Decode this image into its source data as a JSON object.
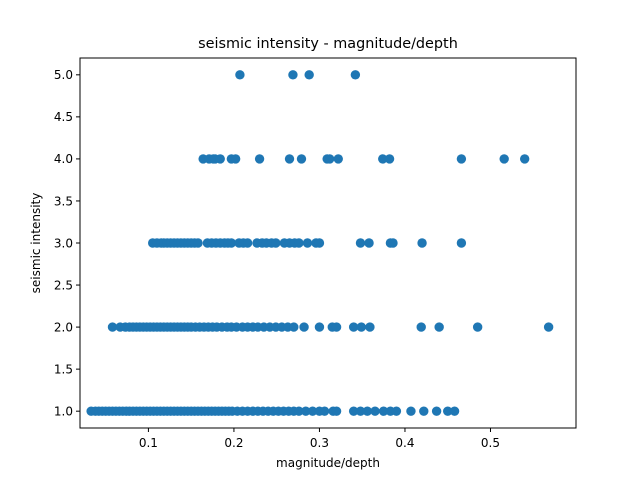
{
  "chart_data": {
    "type": "scatter",
    "title": "seismic intensity - magnitude/depth",
    "xlabel": "magnitude/depth",
    "ylabel": "seismic intensity",
    "xlim": [
      0.02,
      0.6
    ],
    "ylim": [
      0.8,
      5.2
    ],
    "x_ticks": [
      0.1,
      0.2,
      0.3,
      0.4,
      0.5
    ],
    "x_tick_labels": [
      "0.1",
      "0.2",
      "0.3",
      "0.4",
      "0.5"
    ],
    "y_ticks": [
      1.0,
      1.5,
      2.0,
      2.5,
      3.0,
      3.5,
      4.0,
      4.5,
      5.0
    ],
    "y_tick_labels": [
      "1.0",
      "1.5",
      "2.0",
      "2.5",
      "3.0",
      "3.5",
      "4.0",
      "4.5",
      "5.0"
    ],
    "grid": false,
    "marker_color": "#1f77b4",
    "series": [
      {
        "points": [
          [
            0.207,
            5.0
          ],
          [
            0.269,
            5.0
          ],
          [
            0.288,
            5.0
          ],
          [
            0.342,
            5.0
          ],
          [
            0.164,
            4.0
          ],
          [
            0.171,
            4.0
          ],
          [
            0.176,
            4.0
          ],
          [
            0.178,
            4.0
          ],
          [
            0.184,
            4.0
          ],
          [
            0.197,
            4.0
          ],
          [
            0.202,
            4.0
          ],
          [
            0.23,
            4.0
          ],
          [
            0.265,
            4.0
          ],
          [
            0.279,
            4.0
          ],
          [
            0.309,
            4.0
          ],
          [
            0.312,
            4.0
          ],
          [
            0.322,
            4.0
          ],
          [
            0.374,
            4.0
          ],
          [
            0.382,
            4.0
          ],
          [
            0.466,
            4.0
          ],
          [
            0.516,
            4.0
          ],
          [
            0.54,
            4.0
          ],
          [
            0.105,
            3.0
          ],
          [
            0.11,
            3.0
          ],
          [
            0.115,
            3.0
          ],
          [
            0.118,
            3.0
          ],
          [
            0.122,
            3.0
          ],
          [
            0.126,
            3.0
          ],
          [
            0.13,
            3.0
          ],
          [
            0.134,
            3.0
          ],
          [
            0.138,
            3.0
          ],
          [
            0.142,
            3.0
          ],
          [
            0.146,
            3.0
          ],
          [
            0.15,
            3.0
          ],
          [
            0.154,
            3.0
          ],
          [
            0.158,
            3.0
          ],
          [
            0.169,
            3.0
          ],
          [
            0.174,
            3.0
          ],
          [
            0.179,
            3.0
          ],
          [
            0.184,
            3.0
          ],
          [
            0.189,
            3.0
          ],
          [
            0.193,
            3.0
          ],
          [
            0.197,
            3.0
          ],
          [
            0.206,
            3.0
          ],
          [
            0.211,
            3.0
          ],
          [
            0.216,
            3.0
          ],
          [
            0.227,
            3.0
          ],
          [
            0.233,
            3.0
          ],
          [
            0.238,
            3.0
          ],
          [
            0.244,
            3.0
          ],
          [
            0.249,
            3.0
          ],
          [
            0.259,
            3.0
          ],
          [
            0.265,
            3.0
          ],
          [
            0.271,
            3.0
          ],
          [
            0.276,
            3.0
          ],
          [
            0.286,
            3.0
          ],
          [
            0.296,
            3.0
          ],
          [
            0.3,
            3.0
          ],
          [
            0.348,
            3.0
          ],
          [
            0.358,
            3.0
          ],
          [
            0.383,
            3.0
          ],
          [
            0.386,
            3.0
          ],
          [
            0.42,
            3.0
          ],
          [
            0.466,
            3.0
          ],
          [
            0.058,
            2.0
          ],
          [
            0.067,
            2.0
          ],
          [
            0.073,
            2.0
          ],
          [
            0.078,
            2.0
          ],
          [
            0.082,
            2.0
          ],
          [
            0.086,
            2.0
          ],
          [
            0.09,
            2.0
          ],
          [
            0.094,
            2.0
          ],
          [
            0.098,
            2.0
          ],
          [
            0.102,
            2.0
          ],
          [
            0.106,
            2.0
          ],
          [
            0.11,
            2.0
          ],
          [
            0.114,
            2.0
          ],
          [
            0.118,
            2.0
          ],
          [
            0.122,
            2.0
          ],
          [
            0.126,
            2.0
          ],
          [
            0.13,
            2.0
          ],
          [
            0.134,
            2.0
          ],
          [
            0.138,
            2.0
          ],
          [
            0.142,
            2.0
          ],
          [
            0.146,
            2.0
          ],
          [
            0.15,
            2.0
          ],
          [
            0.155,
            2.0
          ],
          [
            0.16,
            2.0
          ],
          [
            0.165,
            2.0
          ],
          [
            0.17,
            2.0
          ],
          [
            0.175,
            2.0
          ],
          [
            0.18,
            2.0
          ],
          [
            0.186,
            2.0
          ],
          [
            0.192,
            2.0
          ],
          [
            0.197,
            2.0
          ],
          [
            0.203,
            2.0
          ],
          [
            0.21,
            2.0
          ],
          [
            0.216,
            2.0
          ],
          [
            0.222,
            2.0
          ],
          [
            0.228,
            2.0
          ],
          [
            0.235,
            2.0
          ],
          [
            0.242,
            2.0
          ],
          [
            0.249,
            2.0
          ],
          [
            0.256,
            2.0
          ],
          [
            0.263,
            2.0
          ],
          [
            0.27,
            2.0
          ],
          [
            0.282,
            2.0
          ],
          [
            0.3,
            2.0
          ],
          [
            0.315,
            2.0
          ],
          [
            0.32,
            2.0
          ],
          [
            0.34,
            2.0
          ],
          [
            0.349,
            2.0
          ],
          [
            0.359,
            2.0
          ],
          [
            0.419,
            2.0
          ],
          [
            0.44,
            2.0
          ],
          [
            0.485,
            2.0
          ],
          [
            0.568,
            2.0
          ],
          [
            0.033,
            1.0
          ],
          [
            0.038,
            1.0
          ],
          [
            0.042,
            1.0
          ],
          [
            0.046,
            1.0
          ],
          [
            0.05,
            1.0
          ],
          [
            0.054,
            1.0
          ],
          [
            0.058,
            1.0
          ],
          [
            0.062,
            1.0
          ],
          [
            0.066,
            1.0
          ],
          [
            0.07,
            1.0
          ],
          [
            0.074,
            1.0
          ],
          [
            0.078,
            1.0
          ],
          [
            0.082,
            1.0
          ],
          [
            0.086,
            1.0
          ],
          [
            0.09,
            1.0
          ],
          [
            0.094,
            1.0
          ],
          [
            0.098,
            1.0
          ],
          [
            0.102,
            1.0
          ],
          [
            0.106,
            1.0
          ],
          [
            0.11,
            1.0
          ],
          [
            0.114,
            1.0
          ],
          [
            0.118,
            1.0
          ],
          [
            0.122,
            1.0
          ],
          [
            0.126,
            1.0
          ],
          [
            0.13,
            1.0
          ],
          [
            0.134,
            1.0
          ],
          [
            0.138,
            1.0
          ],
          [
            0.142,
            1.0
          ],
          [
            0.146,
            1.0
          ],
          [
            0.15,
            1.0
          ],
          [
            0.154,
            1.0
          ],
          [
            0.158,
            1.0
          ],
          [
            0.162,
            1.0
          ],
          [
            0.166,
            1.0
          ],
          [
            0.17,
            1.0
          ],
          [
            0.174,
            1.0
          ],
          [
            0.178,
            1.0
          ],
          [
            0.182,
            1.0
          ],
          [
            0.186,
            1.0
          ],
          [
            0.19,
            1.0
          ],
          [
            0.194,
            1.0
          ],
          [
            0.198,
            1.0
          ],
          [
            0.204,
            1.0
          ],
          [
            0.21,
            1.0
          ],
          [
            0.216,
            1.0
          ],
          [
            0.222,
            1.0
          ],
          [
            0.228,
            1.0
          ],
          [
            0.234,
            1.0
          ],
          [
            0.24,
            1.0
          ],
          [
            0.246,
            1.0
          ],
          [
            0.252,
            1.0
          ],
          [
            0.258,
            1.0
          ],
          [
            0.264,
            1.0
          ],
          [
            0.27,
            1.0
          ],
          [
            0.276,
            1.0
          ],
          [
            0.284,
            1.0
          ],
          [
            0.292,
            1.0
          ],
          [
            0.3,
            1.0
          ],
          [
            0.306,
            1.0
          ],
          [
            0.316,
            1.0
          ],
          [
            0.32,
            1.0
          ],
          [
            0.34,
            1.0
          ],
          [
            0.348,
            1.0
          ],
          [
            0.356,
            1.0
          ],
          [
            0.365,
            1.0
          ],
          [
            0.375,
            1.0
          ],
          [
            0.383,
            1.0
          ],
          [
            0.39,
            1.0
          ],
          [
            0.407,
            1.0
          ],
          [
            0.422,
            1.0
          ],
          [
            0.437,
            1.0
          ],
          [
            0.45,
            1.0
          ],
          [
            0.458,
            1.0
          ]
        ]
      }
    ]
  }
}
